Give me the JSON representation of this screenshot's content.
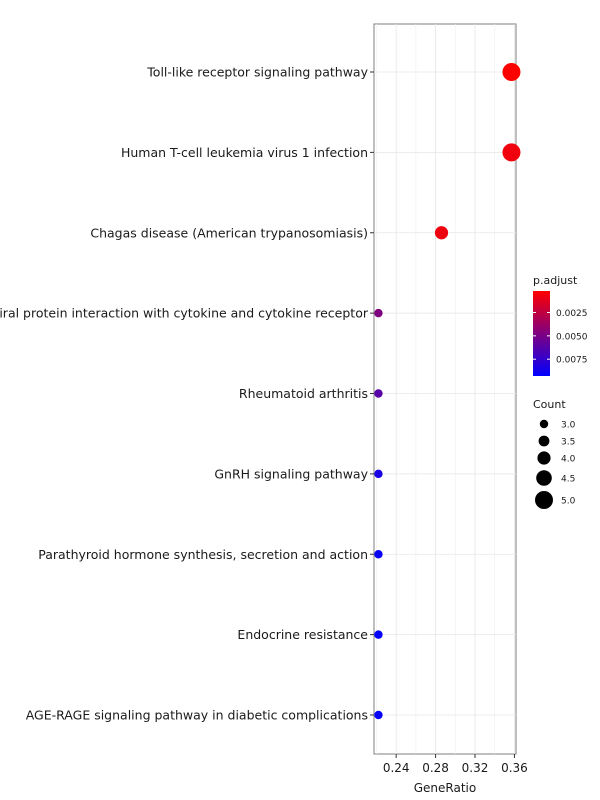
{
  "chart_data": {
    "type": "scatter",
    "xlabel": "GeneRatio",
    "ylabel": "",
    "xlim": [
      0.2175,
      0.3616
    ],
    "x_ticks": [
      0.24,
      0.28,
      0.32,
      0.36
    ],
    "x_tick_labels": [
      "0.24",
      "0.28",
      "0.32",
      "0.36"
    ],
    "grid": true,
    "legend_position": "right",
    "points": [
      {
        "category": "Toll-like receptor signaling pathway",
        "x": 0.357,
        "count": 5,
        "p_adjust": 0.0002
      },
      {
        "category": "Human T-cell leukemia virus 1 infection",
        "x": 0.357,
        "count": 5,
        "p_adjust": 0.0007
      },
      {
        "category": "Chagas disease (American trypanosomiasis)",
        "x": 0.286,
        "count": 4,
        "p_adjust": 0.0008
      },
      {
        "category": "Viral protein interaction with cytokine and cytokine receptor",
        "x": 0.222,
        "count": 3,
        "p_adjust": 0.0048
      },
      {
        "category": "Rheumatoid arthritis",
        "x": 0.222,
        "count": 3,
        "p_adjust": 0.0062
      },
      {
        "category": "GnRH signaling pathway",
        "x": 0.222,
        "count": 3,
        "p_adjust": 0.0084
      },
      {
        "category": "Parathyroid hormone synthesis, secretion and action",
        "x": 0.222,
        "count": 3,
        "p_adjust": 0.009
      },
      {
        "category": "Endocrine resistance",
        "x": 0.222,
        "count": 3,
        "p_adjust": 0.0092
      },
      {
        "category": "AGE-RAGE signaling pathway in diabetic complications",
        "x": 0.222,
        "count": 3,
        "p_adjust": 0.0092
      }
    ],
    "color_legend": {
      "title": "p.adjust",
      "range": [
        0.0093,
        0.0002
      ],
      "low_color": "#ff0000",
      "high_color": "#0000ff",
      "ticks": [
        0.0025,
        0.005,
        0.0075
      ],
      "tick_labels": [
        "0.0025",
        "0.0050",
        "0.0075"
      ]
    },
    "size_legend": {
      "title": "Count",
      "values": [
        3.0,
        3.5,
        4.0,
        4.5,
        5.0
      ],
      "labels": [
        "3.0",
        "3.5",
        "4.0",
        "4.5",
        "5.0"
      ]
    }
  }
}
